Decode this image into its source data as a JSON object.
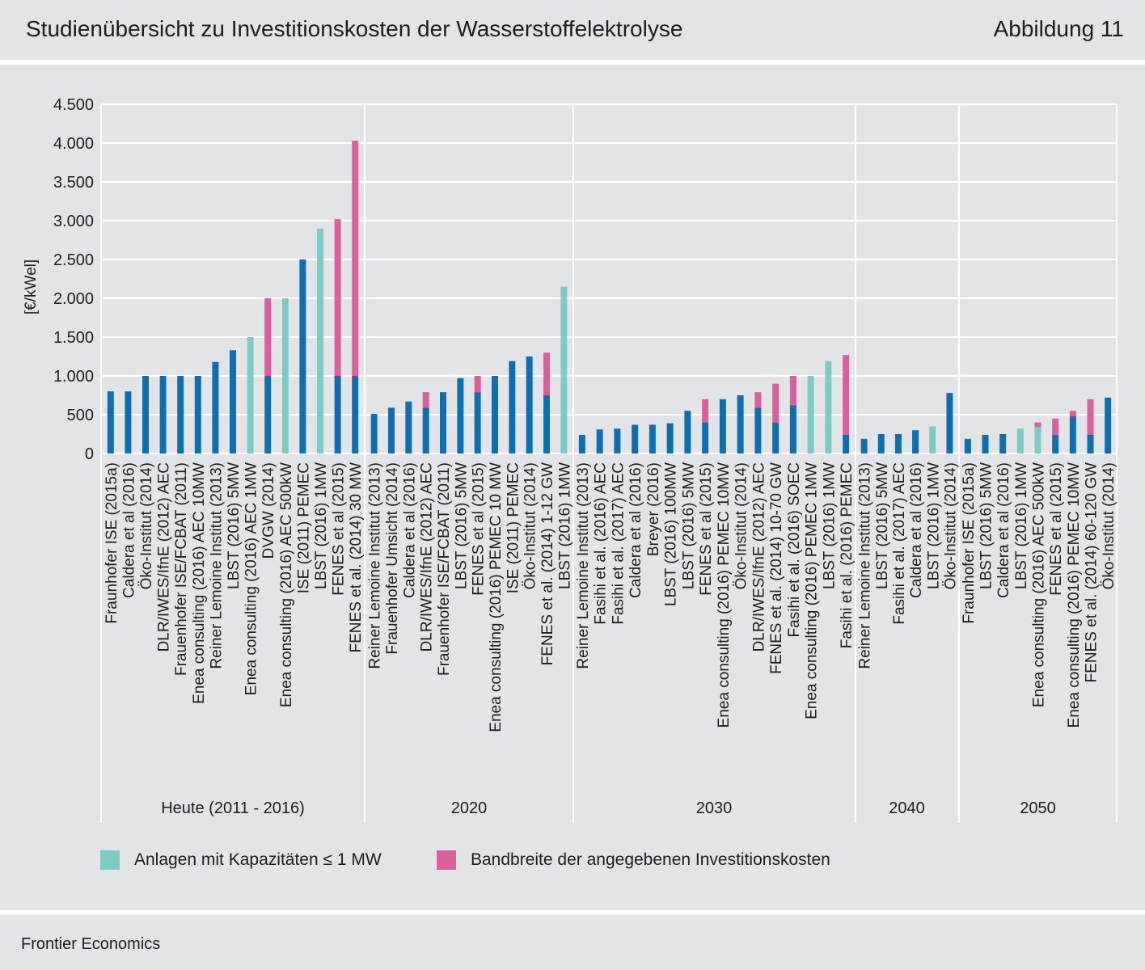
{
  "header": {
    "title": "Studienübersicht zu Investitionskosten der Wasserstoffelektrolyse",
    "figure_label": "Abbildung 11"
  },
  "footer": {
    "source": "Frontier Economics"
  },
  "legend": [
    {
      "label": "Anlagen mit Kapazitäten ≤ 1 MW",
      "color": "#7ecac6"
    },
    {
      "label": "Bandbreite der angegebenen Investitionskosten",
      "color": "#db5f9e"
    }
  ],
  "colors": {
    "base": "#0e6fae",
    "small": "#7ecac6",
    "range": "#db5f9e"
  },
  "chart_data": {
    "type": "bar",
    "ylabel": "[€/kWel]",
    "ylim": [
      0,
      4500
    ],
    "yticks": [
      0,
      500,
      1000,
      1500,
      2000,
      2500,
      3000,
      3500,
      4000,
      4500
    ],
    "ytick_labels": [
      "0",
      "500",
      "1.000",
      "1.500",
      "2.000",
      "2.500",
      "3.000",
      "3.500",
      "4.000",
      "4.500"
    ],
    "grid": true,
    "groups": [
      {
        "label": "Heute (2011 - 2016)",
        "bars": [
          {
            "label": "Fraunhofer ISE (2015a)",
            "value": 800,
            "type": "base"
          },
          {
            "label": "Caldera et al (2016)",
            "value": 800,
            "type": "base"
          },
          {
            "label": "Öko-Institut (2014)",
            "value": 1000,
            "type": "base"
          },
          {
            "label": "DLR/IWES/IfnE (2012) AEC",
            "value": 1000,
            "type": "base"
          },
          {
            "label": "Frauenhofer ISE/FCBAT (2011)",
            "value": 1000,
            "type": "base"
          },
          {
            "label": "Enea consulting (2016) AEC 10MW",
            "value": 1000,
            "type": "base"
          },
          {
            "label": "Reiner Lemoine Institut (2013)",
            "value": 1180,
            "type": "base"
          },
          {
            "label": "LBST (2016) 5MW",
            "value": 1330,
            "type": "base"
          },
          {
            "label": "Enea consulting (2016) AEC 1MW",
            "value": 1500,
            "type": "small"
          },
          {
            "label": "DVGW (2014)",
            "value": 1000,
            "max": 2000,
            "type": "range"
          },
          {
            "label": "Enea consulting (2016) AEC 500kW",
            "value": 2000,
            "type": "small"
          },
          {
            "label": "ISE (2011) PEMEC",
            "value": 2500,
            "type": "base"
          },
          {
            "label": "LBST (2016) 1MW",
            "value": 2900,
            "type": "small"
          },
          {
            "label": "FENES et al (2015)",
            "value": 1000,
            "max": 3020,
            "type": "range"
          },
          {
            "label": "FENES et al. (2014) 30 MW",
            "value": 1000,
            "max": 4030,
            "type": "range"
          }
        ]
      },
      {
        "label": "2020",
        "bars": [
          {
            "label": "Reiner Lemoine Institut (2013)",
            "value": 510,
            "type": "base"
          },
          {
            "label": "Frauenhofer Umsicht (2014)",
            "value": 590,
            "type": "base"
          },
          {
            "label": "Caldera et al (2016)",
            "value": 670,
            "type": "base"
          },
          {
            "label": "DLR/IWES/IfnE (2012) AEC",
            "value": 590,
            "max": 790,
            "type": "range"
          },
          {
            "label": "Frauenhofer ISE/FCBAT (2011)",
            "value": 790,
            "type": "base"
          },
          {
            "label": "LBST (2016) 5MW",
            "value": 970,
            "type": "base"
          },
          {
            "label": "FENES et al (2015)",
            "value": 790,
            "max": 1000,
            "type": "range"
          },
          {
            "label": "Enea consulting (2016) PEMEC 10 MW",
            "value": 1000,
            "type": "base"
          },
          {
            "label": "ISE (2011) PEMEC",
            "value": 1190,
            "type": "base"
          },
          {
            "label": "Öko-Institut (2014)",
            "value": 1250,
            "type": "base"
          },
          {
            "label": "FENES et al. (2014) 1-12 GW",
            "value": 750,
            "max": 1300,
            "type": "range"
          },
          {
            "label": "LBST (2016) 1MW",
            "value": 2150,
            "type": "small"
          }
        ]
      },
      {
        "label": "2030",
        "bars": [
          {
            "label": "Reiner Lemoine Institut (2013)",
            "value": 240,
            "type": "base"
          },
          {
            "label": "Fasihi et al. (2016) AEC",
            "value": 310,
            "type": "base"
          },
          {
            "label": "Fasihi et al. (2017) AEC",
            "value": 320,
            "type": "base"
          },
          {
            "label": "Caldera et al (2016)",
            "value": 370,
            "type": "base"
          },
          {
            "label": "Breyer (2016)",
            "value": 370,
            "type": "base"
          },
          {
            "label": "LBST (2016) 100MW",
            "value": 390,
            "type": "base"
          },
          {
            "label": "LBST (2016) 5MW",
            "value": 550,
            "type": "base"
          },
          {
            "label": "FENES et al (2015)",
            "value": 400,
            "max": 700,
            "type": "range"
          },
          {
            "label": "Enea consulting (2016) PEMEC 10MW",
            "value": 700,
            "type": "base"
          },
          {
            "label": "Öko-Institut (2014)",
            "value": 750,
            "type": "base"
          },
          {
            "label": "DLR/IWES/IfnE (2012) AEC",
            "value": 590,
            "max": 790,
            "type": "range"
          },
          {
            "label": "FENES et al. (2014) 10-70 GW",
            "value": 400,
            "max": 900,
            "type": "range"
          },
          {
            "label": "Fasihi et al. (2016) SOEC",
            "value": 620,
            "max": 1000,
            "type": "range"
          },
          {
            "label": "Enea consulting (2016) PEMEC 1MW",
            "value": 1000,
            "type": "small"
          },
          {
            "label": "LBST (2016) 1MW",
            "value": 1190,
            "type": "small"
          },
          {
            "label": "Fasihi et al. (2016) PEMEC",
            "value": 240,
            "max": 1270,
            "type": "range"
          }
        ]
      },
      {
        "label": "2040",
        "bars": [
          {
            "label": "Reiner Lemoine Institut (2013)",
            "value": 190,
            "type": "base"
          },
          {
            "label": "LBST (2016) 5MW",
            "value": 250,
            "type": "base"
          },
          {
            "label": "Fasihi et al. (2017) AEC",
            "value": 250,
            "type": "base"
          },
          {
            "label": "Caldera et al (2016)",
            "value": 300,
            "type": "base"
          },
          {
            "label": "LBST (2016) 1MW",
            "value": 350,
            "type": "small"
          },
          {
            "label": "Öko-Institut (2014)",
            "value": 780,
            "type": "base"
          }
        ]
      },
      {
        "label": "2050",
        "bars": [
          {
            "label": "Fraunhofer ISE (2015a)",
            "value": 190,
            "type": "base"
          },
          {
            "label": "LBST (2016) 5MW",
            "value": 240,
            "type": "base"
          },
          {
            "label": "Caldera et al (2016)",
            "value": 250,
            "type": "base"
          },
          {
            "label": "LBST (2016) 1MW",
            "value": 320,
            "type": "small"
          },
          {
            "label": "Enea consulting (2016) AEC 500kW",
            "value": 340,
            "max": 400,
            "type": "range_small"
          },
          {
            "label": "FENES et al (2015)",
            "value": 240,
            "max": 450,
            "type": "range"
          },
          {
            "label": "Enea consulting (2016) PEMEC 10MW",
            "value": 480,
            "max": 550,
            "type": "range"
          },
          {
            "label": "FENES et al. (2014) 60-120 GW",
            "value": 240,
            "max": 700,
            "type": "range"
          },
          {
            "label": "Öko-Institut (2014)",
            "value": 720,
            "type": "base"
          }
        ]
      }
    ]
  }
}
